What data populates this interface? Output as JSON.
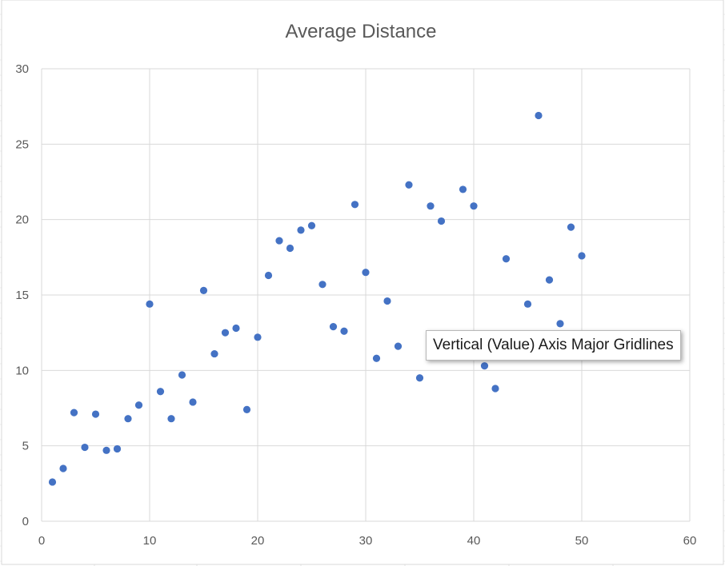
{
  "chart_data": {
    "type": "scatter",
    "title": "Average Distance",
    "xlabel": "",
    "ylabel": "",
    "xlim": [
      0,
      60
    ],
    "ylim": [
      0,
      30
    ],
    "x_ticks": [
      "0",
      "10",
      "20",
      "30",
      "40",
      "50",
      "60"
    ],
    "y_ticks": [
      "0",
      "5",
      "10",
      "15",
      "20",
      "25",
      "30"
    ],
    "grid": true,
    "legend": "none",
    "series": [
      {
        "color": "#4472c4",
        "points": [
          [
            1,
            2.6
          ],
          [
            2,
            3.5
          ],
          [
            3,
            7.2
          ],
          [
            4,
            4.9
          ],
          [
            5,
            7.1
          ],
          [
            6,
            4.7
          ],
          [
            7,
            4.8
          ],
          [
            8,
            6.8
          ],
          [
            9,
            7.7
          ],
          [
            10,
            14.4
          ],
          [
            11,
            8.6
          ],
          [
            12,
            6.8
          ],
          [
            13,
            9.7
          ],
          [
            14,
            7.9
          ],
          [
            15,
            15.3
          ],
          [
            16,
            11.1
          ],
          [
            17,
            12.5
          ],
          [
            18,
            12.8
          ],
          [
            19,
            7.4
          ],
          [
            20,
            12.2
          ],
          [
            21,
            16.3
          ],
          [
            22,
            18.6
          ],
          [
            23,
            18.1
          ],
          [
            24,
            19.3
          ],
          [
            25,
            19.6
          ],
          [
            26,
            15.7
          ],
          [
            27,
            12.9
          ],
          [
            28,
            12.6
          ],
          [
            29,
            21.0
          ],
          [
            30,
            16.5
          ],
          [
            31,
            10.8
          ],
          [
            32,
            14.6
          ],
          [
            33,
            11.6
          ],
          [
            34,
            22.3
          ],
          [
            35,
            9.5
          ],
          [
            36,
            20.9
          ],
          [
            37,
            19.9
          ],
          [
            39,
            22.0
          ],
          [
            40,
            20.9
          ],
          [
            41,
            10.3
          ],
          [
            42,
            8.8
          ],
          [
            43,
            17.4
          ],
          [
            45,
            14.4
          ],
          [
            46,
            26.9
          ],
          [
            47,
            16.0
          ],
          [
            48,
            13.1
          ],
          [
            49,
            19.5
          ],
          [
            50,
            17.6
          ]
        ]
      }
    ]
  },
  "tooltip": {
    "text": "Vertical (Value) Axis Major Gridlines"
  }
}
